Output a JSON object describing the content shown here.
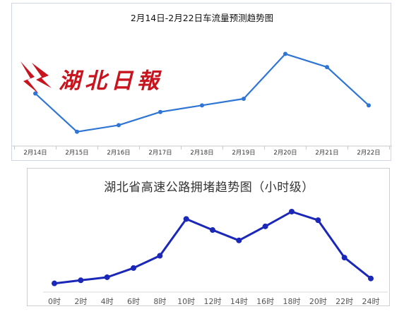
{
  "chart_data": [
    {
      "type": "line",
      "title": "2月14日-2月22日车流量预测趋势图",
      "categories": [
        "2月14日",
        "2月15日",
        "2月16日",
        "2月17日",
        "2月18日",
        "2月19日",
        "2月20日",
        "2月21日",
        "2月22日"
      ],
      "series": [
        {
          "values": [
            70,
            12,
            22,
            42,
            52,
            62,
            130,
            110,
            52
          ],
          "color": "#2e75d6"
        }
      ],
      "ylim": [
        0,
        140
      ],
      "grid": false,
      "legend": "none"
    },
    {
      "type": "line",
      "title": "湖北省高速公路拥堵趋势图（小时级）",
      "categories": [
        "0时",
        "2时",
        "4时",
        "6时",
        "8时",
        "10时",
        "12时",
        "14时",
        "16时",
        "18时",
        "20时",
        "22时",
        "24时"
      ],
      "series": [
        {
          "values": [
            5,
            10,
            15,
            30,
            50,
            110,
            92,
            75,
            98,
            122,
            108,
            47,
            13
          ],
          "color": "#1a27b8"
        }
      ],
      "ylim": [
        0,
        130
      ],
      "grid": false,
      "legend": "none"
    }
  ],
  "watermark": {
    "text": "湖北日報",
    "color": "#c8141e"
  }
}
